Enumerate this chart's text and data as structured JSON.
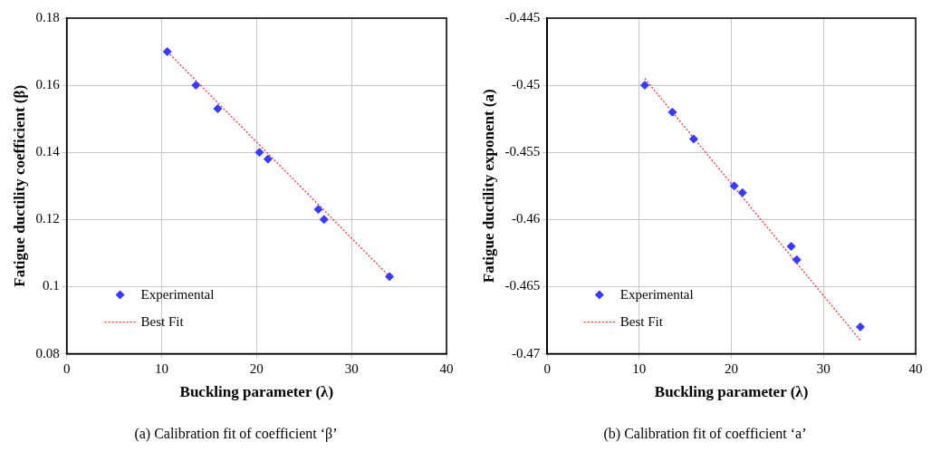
{
  "chart_data": [
    {
      "type": "scatter",
      "xlabel": "Buckling parameter (λ)",
      "ylabel": "Fatigue ductility coefficient (β)",
      "annotations": [
        "(a) Calibration fit of coefficient ‘β’"
      ],
      "xlim": [
        0,
        40
      ],
      "xticks": [
        0,
        10,
        20,
        30,
        40
      ],
      "ylim": [
        0.08,
        0.18
      ],
      "yticks": [
        0.08,
        0.1,
        0.12,
        0.14,
        0.16,
        0.18
      ],
      "grid": true,
      "legend": "bottom left",
      "series": [
        {
          "name": "Experimental",
          "marker": "diamond",
          "color": "#3a3aff",
          "x": [
            10.6,
            13.6,
            15.9,
            20.3,
            21.2,
            26.5,
            27.1,
            34.0
          ],
          "values": [
            0.17,
            0.16,
            0.153,
            0.14,
            0.138,
            0.123,
            0.12,
            0.103
          ]
        },
        {
          "name": "Best Fit",
          "type": "line",
          "marker": "none",
          "color": "#ff3030",
          "line_style": "dotted",
          "x": [
            10.6,
            34.0
          ],
          "values": [
            0.17,
            0.103
          ]
        }
      ]
    },
    {
      "type": "scatter",
      "xlabel": "Buckling parameter (λ)",
      "ylabel": "Fatigue ductility exponent (a)",
      "annotations": [
        "(b) Calibration fit of coefficient ‘a’"
      ],
      "xlim": [
        0,
        40
      ],
      "xticks": [
        0,
        10,
        20,
        30,
        40
      ],
      "ylim": [
        -0.47,
        -0.445
      ],
      "yticks": [
        -0.47,
        -0.465,
        -0.46,
        -0.455,
        -0.45,
        -0.445
      ],
      "grid": true,
      "legend": "bottom left",
      "series": [
        {
          "name": "Experimental",
          "marker": "diamond",
          "color": "#3a3aff",
          "x": [
            10.6,
            13.6,
            15.9,
            20.3,
            21.2,
            26.5,
            27.1,
            34.0
          ],
          "values": [
            -0.45,
            -0.452,
            -0.454,
            -0.4575,
            -0.458,
            -0.462,
            -0.463,
            -0.468
          ]
        },
        {
          "name": "Best Fit",
          "type": "line",
          "marker": "none",
          "color": "#ff3030",
          "line_style": "dotted",
          "x": [
            10.6,
            34.0
          ],
          "values": [
            -0.4495,
            -0.469
          ]
        }
      ]
    }
  ]
}
